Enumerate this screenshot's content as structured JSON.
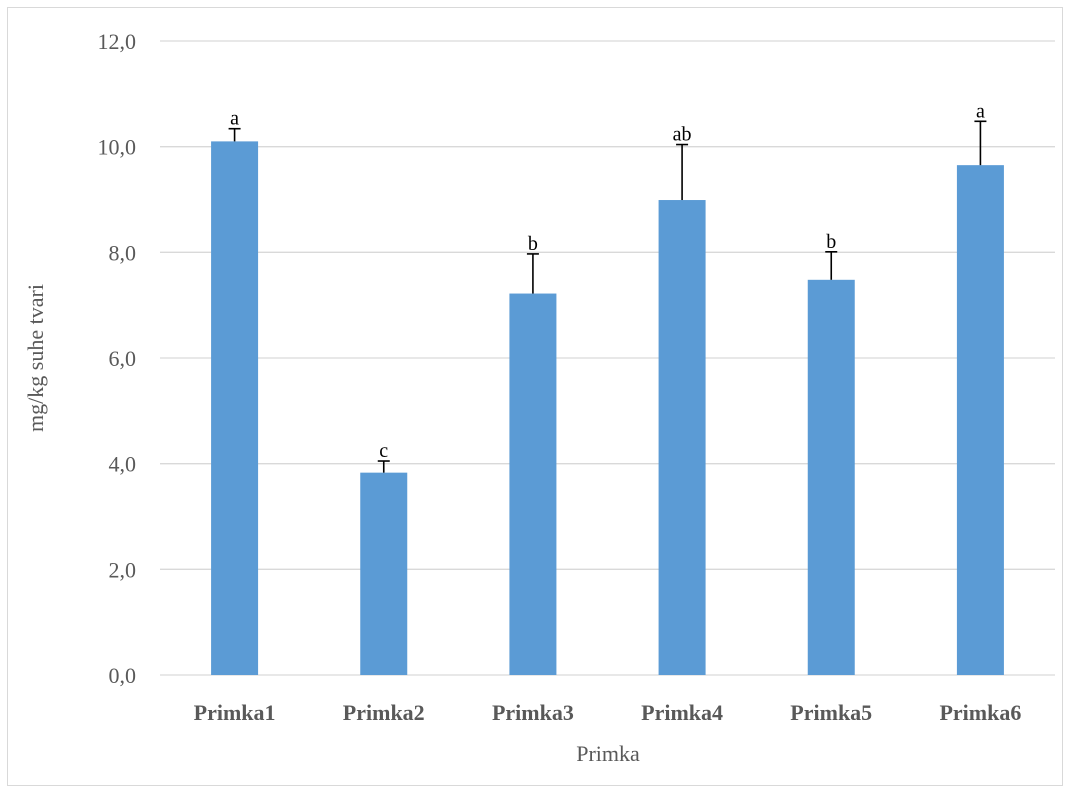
{
  "chart_data": {
    "type": "bar",
    "title": "",
    "xlabel": "Primka",
    "ylabel": "mg/kg suhe tvari",
    "categories": [
      "Primka1",
      "Primka2",
      "Primka3",
      "Primka4",
      "Primka5",
      "Primka6"
    ],
    "series": [
      {
        "values": [
          10.1,
          3.83,
          7.22,
          8.99,
          7.48,
          9.65
        ],
        "error_plus": [
          0.24,
          0.22,
          0.75,
          1.05,
          0.53,
          0.83
        ],
        "color": "#5b9bd5"
      }
    ],
    "annotations": [
      "a",
      "c",
      "b",
      "ab",
      "b",
      "a"
    ],
    "ylim": [
      0,
      12
    ],
    "yticks": [
      "0,0",
      "2,0",
      "4,0",
      "6,0",
      "8,0",
      "10,0",
      "12,0"
    ],
    "grid": true,
    "legend": "none"
  }
}
